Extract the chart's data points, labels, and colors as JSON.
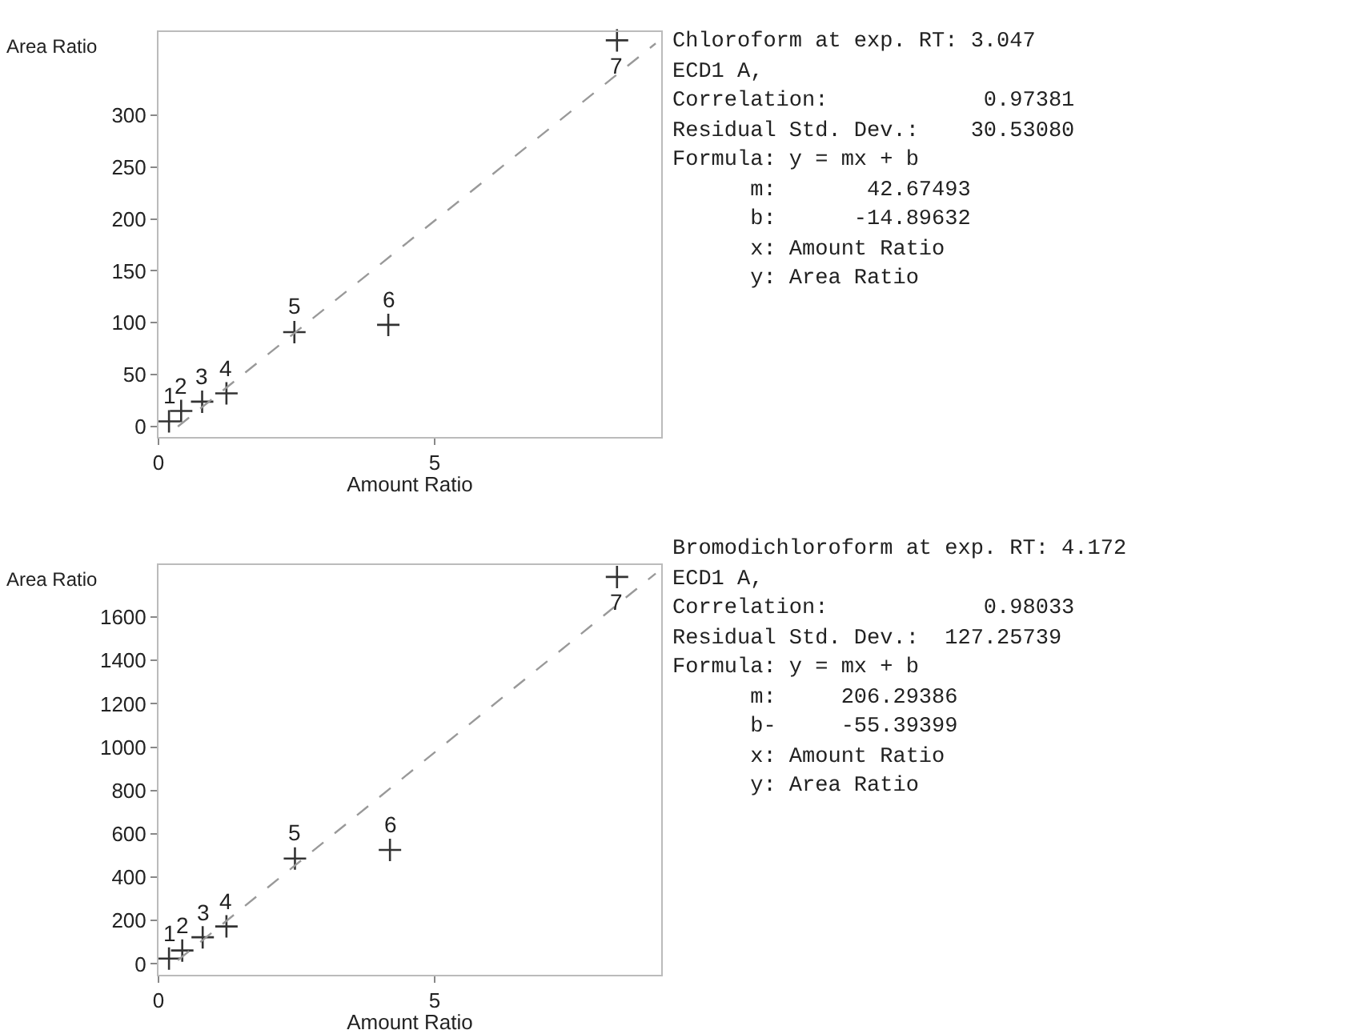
{
  "chart_data": [
    {
      "type": "scatter",
      "xlabel": "Amount Ratio",
      "ylabel": "Area Ratio",
      "xlim": [
        0,
        9.1
      ],
      "ylim": [
        -10,
        380
      ],
      "xticks": [
        {
          "value": 0,
          "label": "0"
        },
        5
      ],
      "yticks": [
        {
          "value": 0,
          "label": "0"
        },
        50,
        100,
        150,
        200,
        250,
        300
      ],
      "grid": false,
      "series": [
        {
          "type": "scatter",
          "color": "#333333",
          "marker": "cross",
          "x": [
            0.19,
            0.41,
            0.79,
            1.23,
            2.46,
            4.16,
            8.3
          ],
          "values": [
            5,
            15,
            24,
            32,
            91,
            98,
            372
          ]
        },
        {
          "type": "line",
          "color": "#999999",
          "marker": "none",
          "line_style": "dashed",
          "x": [
            0.35,
            9.0
          ],
          "values": [
            0,
            369
          ]
        }
      ],
      "annotations": [
        {
          "text": "1",
          "x": 0.19,
          "y": 5
        },
        {
          "text": "2",
          "x": 0.41,
          "y": 15
        },
        {
          "text": "3",
          "x": 0.79,
          "y": 24
        },
        {
          "text": "4",
          "x": 1.23,
          "y": 32
        },
        {
          "text": "5",
          "x": 2.46,
          "y": 91
        },
        {
          "text": "6",
          "x": 4.16,
          "y": 98
        },
        {
          "text": "7",
          "x": 8.3,
          "y": 372
        }
      ]
    },
    {
      "type": "other",
      "title": "Chloroform at exp. RT: 3.047",
      "annotations": [
        "ECD1 A,",
        "Correlation:            0.97381",
        "Residual Std. Dev.:    30.53080",
        "Formula: y = mx + b",
        "      m:       42.67493",
        "      b:      -14.89632",
        "      x: Amount Ratio",
        "      y: Area Ratio"
      ]
    },
    {
      "type": "scatter",
      "xlabel": "Amount Ratio",
      "ylabel": "Area Ratio",
      "xlim": [
        0,
        9.1
      ],
      "ylim": [
        -50,
        1840
      ],
      "xticks": [
        {
          "value": 0,
          "label": "0"
        },
        5
      ],
      "yticks": [
        {
          "value": 0,
          "label": "0"
        },
        200,
        400,
        600,
        800,
        1000,
        1200,
        1400,
        1600
      ],
      "grid": false,
      "series": [
        {
          "type": "scatter",
          "color": "#333333",
          "marker": "cross",
          "x": [
            0.19,
            0.43,
            0.8,
            1.23,
            2.47,
            4.19,
            8.3
          ],
          "values": [
            25,
            62,
            123,
            173,
            486,
            526,
            1785
          ]
        },
        {
          "type": "line",
          "color": "#999999",
          "marker": "none",
          "line_style": "dashed",
          "x": [
            0.35,
            9.0
          ],
          "values": [
            17,
            1801
          ]
        }
      ],
      "annotations": [
        {
          "text": "1",
          "x": 0.19,
          "y": 25
        },
        {
          "text": "2",
          "x": 0.43,
          "y": 62
        },
        {
          "text": "3",
          "x": 0.8,
          "y": 123
        },
        {
          "text": "4",
          "x": 1.23,
          "y": 173
        },
        {
          "text": "5",
          "x": 2.47,
          "y": 486
        },
        {
          "text": "6",
          "x": 4.19,
          "y": 526
        },
        {
          "text": "7",
          "x": 8.3,
          "y": 1785
        }
      ]
    },
    {
      "type": "other",
      "title": "Bromodichloroform at exp. RT: 4.172",
      "annotations": [
        "ECD1 A,",
        "Correlation:            0.98033",
        "Residual Std. Dev.:  127.25739",
        "Formula: y = mx + b",
        "      m:     206.29386",
        "      b-     -55.39399",
        "      x: Amount Ratio",
        "      y: Area Ratio"
      ]
    }
  ]
}
